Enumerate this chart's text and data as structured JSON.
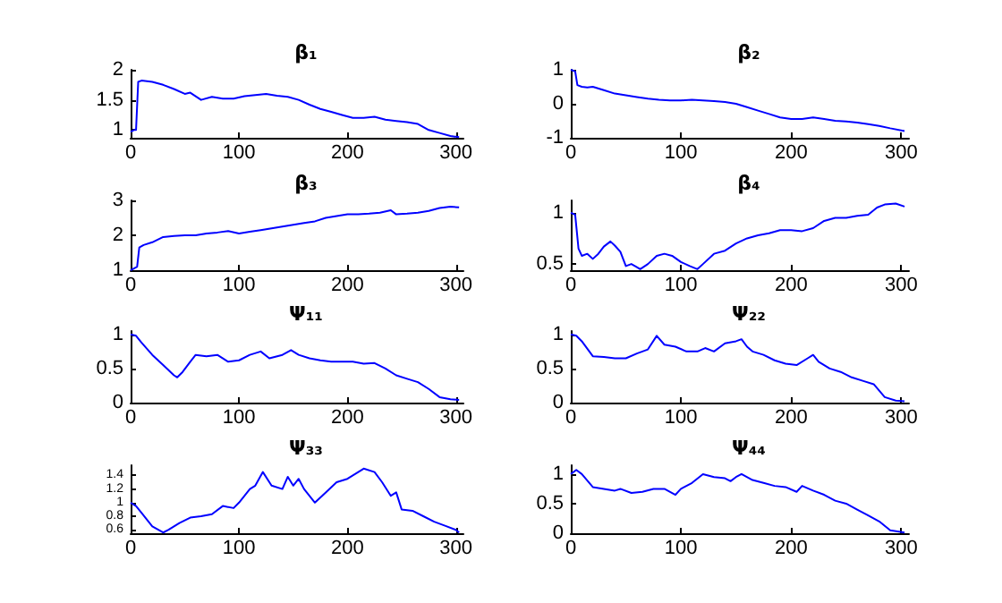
{
  "chart_data": [
    {
      "type": "line",
      "title": "β₁",
      "color": "#0000ff",
      "xlim": [
        0,
        307
      ],
      "xticks": [
        0,
        100,
        200,
        300
      ],
      "ylim": [
        0.87,
        2
      ],
      "yticks": [
        1,
        1.5,
        2
      ],
      "x": [
        0,
        3,
        5,
        7,
        10,
        20,
        30,
        40,
        50,
        55,
        65,
        75,
        85,
        95,
        105,
        115,
        125,
        135,
        145,
        155,
        165,
        175,
        185,
        195,
        205,
        215,
        225,
        235,
        245,
        255,
        265,
        275,
        285,
        295,
        303
      ],
      "values": [
        0.97,
        1.0,
        1.0,
        1.8,
        1.82,
        1.8,
        1.75,
        1.68,
        1.6,
        1.62,
        1.5,
        1.55,
        1.52,
        1.52,
        1.56,
        1.58,
        1.6,
        1.57,
        1.55,
        1.5,
        1.42,
        1.35,
        1.3,
        1.25,
        1.2,
        1.2,
        1.22,
        1.17,
        1.15,
        1.13,
        1.1,
        1.0,
        0.95,
        0.9,
        0.88
      ]
    },
    {
      "type": "line",
      "title": "β₂",
      "color": "#0000ff",
      "xlim": [
        0,
        307
      ],
      "xticks": [
        0,
        100,
        200,
        300
      ],
      "ylim": [
        -1,
        1
      ],
      "yticks": [
        -1,
        0,
        1
      ],
      "x": [
        0,
        4,
        6,
        10,
        15,
        20,
        30,
        40,
        50,
        60,
        70,
        80,
        90,
        100,
        110,
        120,
        130,
        140,
        150,
        160,
        170,
        180,
        190,
        200,
        210,
        220,
        230,
        240,
        250,
        260,
        270,
        280,
        290,
        303
      ],
      "values": [
        1.0,
        0.95,
        0.55,
        0.5,
        0.48,
        0.5,
        0.4,
        0.3,
        0.25,
        0.2,
        0.15,
        0.12,
        0.1,
        0.1,
        0.12,
        0.1,
        0.08,
        0.05,
        0.0,
        -0.1,
        -0.2,
        -0.3,
        -0.4,
        -0.45,
        -0.45,
        -0.4,
        -0.45,
        -0.5,
        -0.52,
        -0.55,
        -0.6,
        -0.65,
        -0.72,
        -0.8
      ]
    },
    {
      "type": "line",
      "title": "β₃",
      "color": "#0000ff",
      "xlim": [
        0,
        307
      ],
      "xticks": [
        0,
        100,
        200,
        300
      ],
      "ylim": [
        1,
        3
      ],
      "yticks": [
        1,
        2,
        3
      ],
      "x": [
        0,
        3,
        6,
        8,
        12,
        20,
        30,
        40,
        50,
        60,
        70,
        80,
        90,
        100,
        110,
        120,
        130,
        140,
        150,
        160,
        170,
        180,
        190,
        200,
        210,
        220,
        230,
        240,
        245,
        255,
        265,
        275,
        285,
        295,
        303
      ],
      "values": [
        1.0,
        1.05,
        1.1,
        1.65,
        1.72,
        1.8,
        1.95,
        1.98,
        2.0,
        2.0,
        2.05,
        2.08,
        2.12,
        2.05,
        2.1,
        2.15,
        2.2,
        2.25,
        2.3,
        2.35,
        2.4,
        2.5,
        2.55,
        2.6,
        2.6,
        2.62,
        2.65,
        2.72,
        2.6,
        2.62,
        2.65,
        2.7,
        2.78,
        2.82,
        2.8
      ]
    },
    {
      "type": "line",
      "title": "β₄",
      "color": "#0000ff",
      "xlim": [
        0,
        307
      ],
      "xticks": [
        0,
        100,
        200,
        300
      ],
      "ylim": [
        0.44,
        1.12
      ],
      "yticks": [
        0.5,
        1
      ],
      "x": [
        0,
        4,
        7,
        10,
        15,
        20,
        25,
        30,
        36,
        40,
        45,
        50,
        55,
        60,
        63,
        70,
        78,
        85,
        92,
        100,
        108,
        115,
        120,
        130,
        140,
        150,
        160,
        170,
        180,
        190,
        200,
        210,
        220,
        230,
        240,
        250,
        260,
        270,
        278,
        285,
        295,
        303
      ],
      "values": [
        1.0,
        0.98,
        0.65,
        0.58,
        0.6,
        0.55,
        0.6,
        0.67,
        0.72,
        0.68,
        0.62,
        0.48,
        0.5,
        0.47,
        0.45,
        0.5,
        0.58,
        0.6,
        0.58,
        0.52,
        0.48,
        0.45,
        0.5,
        0.6,
        0.63,
        0.7,
        0.75,
        0.78,
        0.8,
        0.83,
        0.83,
        0.82,
        0.85,
        0.92,
        0.95,
        0.95,
        0.97,
        0.98,
        1.05,
        1.08,
        1.09,
        1.06
      ]
    },
    {
      "type": "line",
      "title": "Ψ₁₁",
      "color": "#0000ff",
      "xlim": [
        0,
        307
      ],
      "xticks": [
        0,
        100,
        200,
        300
      ],
      "ylim": [
        0,
        1.05
      ],
      "yticks": [
        0,
        0.5,
        1
      ],
      "x": [
        0,
        5,
        10,
        20,
        30,
        40,
        43,
        48,
        55,
        60,
        70,
        80,
        90,
        100,
        110,
        120,
        128,
        140,
        148,
        155,
        165,
        175,
        185,
        195,
        205,
        215,
        225,
        235,
        245,
        255,
        265,
        275,
        285,
        295,
        303
      ],
      "values": [
        1.0,
        0.98,
        0.88,
        0.7,
        0.55,
        0.4,
        0.37,
        0.45,
        0.6,
        0.7,
        0.68,
        0.7,
        0.6,
        0.62,
        0.7,
        0.75,
        0.65,
        0.7,
        0.77,
        0.7,
        0.65,
        0.62,
        0.6,
        0.6,
        0.6,
        0.57,
        0.58,
        0.5,
        0.4,
        0.35,
        0.3,
        0.2,
        0.08,
        0.05,
        0.04
      ]
    },
    {
      "type": "line",
      "title": "Ψ₂₂",
      "color": "#0000ff",
      "xlim": [
        0,
        307
      ],
      "xticks": [
        0,
        100,
        200,
        300
      ],
      "ylim": [
        0,
        1.05
      ],
      "yticks": [
        0,
        0.5,
        1
      ],
      "x": [
        0,
        5,
        10,
        20,
        30,
        40,
        50,
        60,
        70,
        78,
        85,
        95,
        105,
        115,
        122,
        130,
        140,
        150,
        155,
        160,
        165,
        175,
        185,
        195,
        205,
        215,
        220,
        225,
        235,
        245,
        255,
        265,
        275,
        285,
        295,
        303
      ],
      "values": [
        1.0,
        0.98,
        0.9,
        0.68,
        0.67,
        0.65,
        0.65,
        0.72,
        0.78,
        0.98,
        0.85,
        0.82,
        0.75,
        0.75,
        0.8,
        0.75,
        0.87,
        0.9,
        0.93,
        0.82,
        0.75,
        0.7,
        0.62,
        0.57,
        0.55,
        0.65,
        0.7,
        0.6,
        0.5,
        0.45,
        0.37,
        0.32,
        0.27,
        0.08,
        0.03,
        0.02
      ]
    },
    {
      "type": "line",
      "title": "Ψ₃₃",
      "color": "#0000ff",
      "xlim": [
        0,
        307
      ],
      "xticks": [
        0,
        100,
        200,
        300
      ],
      "ylim": [
        0.55,
        1.55
      ],
      "yticks": [
        0.6,
        0.8,
        1,
        1.2,
        1.4
      ],
      "x": [
        0,
        5,
        10,
        20,
        30,
        35,
        45,
        55,
        65,
        75,
        85,
        95,
        100,
        110,
        115,
        122,
        130,
        140,
        145,
        150,
        155,
        160,
        170,
        180,
        190,
        200,
        210,
        215,
        225,
        232,
        240,
        245,
        250,
        260,
        270,
        280,
        290,
        300,
        303
      ],
      "values": [
        1.0,
        0.95,
        0.85,
        0.65,
        0.56,
        0.6,
        0.7,
        0.78,
        0.8,
        0.83,
        0.95,
        0.92,
        1.0,
        1.2,
        1.25,
        1.45,
        1.25,
        1.2,
        1.38,
        1.25,
        1.35,
        1.2,
        1.0,
        1.15,
        1.3,
        1.35,
        1.45,
        1.5,
        1.45,
        1.3,
        1.1,
        1.15,
        0.9,
        0.88,
        0.8,
        0.72,
        0.66,
        0.6,
        0.56
      ]
    },
    {
      "type": "line",
      "title": "Ψ₄₄",
      "color": "#0000ff",
      "xlim": [
        0,
        307
      ],
      "xticks": [
        0,
        100,
        200,
        300
      ],
      "ylim": [
        0,
        1.15
      ],
      "yticks": [
        0,
        0.5,
        1
      ],
      "x": [
        0,
        5,
        10,
        20,
        30,
        40,
        45,
        55,
        65,
        75,
        85,
        95,
        100,
        110,
        120,
        130,
        140,
        145,
        150,
        155,
        165,
        175,
        185,
        195,
        205,
        210,
        220,
        230,
        240,
        250,
        260,
        270,
        280,
        290,
        303
      ],
      "values": [
        1.0,
        1.07,
        1.0,
        0.78,
        0.75,
        0.72,
        0.75,
        0.68,
        0.7,
        0.75,
        0.75,
        0.65,
        0.75,
        0.85,
        1.0,
        0.95,
        0.93,
        0.88,
        0.95,
        1.0,
        0.9,
        0.85,
        0.8,
        0.78,
        0.7,
        0.8,
        0.72,
        0.65,
        0.55,
        0.5,
        0.4,
        0.3,
        0.2,
        0.05,
        0.01
      ]
    }
  ]
}
